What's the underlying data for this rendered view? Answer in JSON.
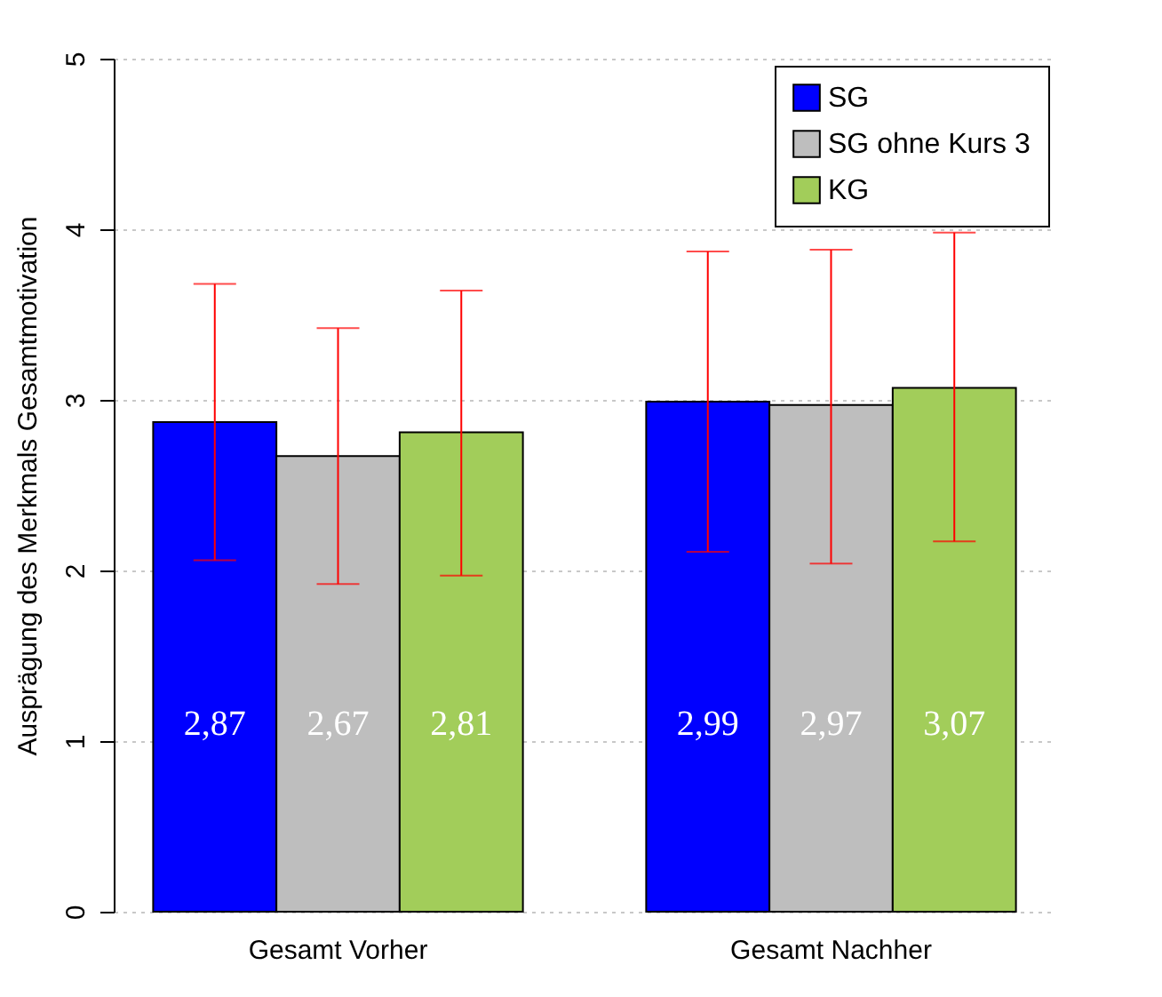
{
  "chart_data": {
    "type": "bar",
    "ylabel": "Ausprägung des Merkmals Gesamtmotivation",
    "categories": [
      "Gesamt Vorher",
      "Gesamt Nachher"
    ],
    "series": [
      {
        "name": "SG",
        "color": "#0000ff",
        "values": [
          2.87,
          2.99
        ],
        "errors": [
          [
            2.06,
            3.68
          ],
          [
            2.11,
            3.87
          ]
        ],
        "value_labels": [
          "2,87",
          "2,99"
        ]
      },
      {
        "name": "SG ohne Kurs 3",
        "color": "#bebebe",
        "values": [
          2.67,
          2.97
        ],
        "errors": [
          [
            1.92,
            3.42
          ],
          [
            2.04,
            3.88
          ]
        ],
        "value_labels": [
          "2,67",
          "2,97"
        ]
      },
      {
        "name": "KG",
        "color": "#a2cd5a",
        "values": [
          2.81,
          3.07
        ],
        "errors": [
          [
            1.97,
            3.64
          ],
          [
            2.17,
            3.98
          ]
        ],
        "value_labels": [
          "2,81",
          "3,07"
        ]
      }
    ],
    "ylim": [
      0,
      5
    ],
    "yticks": [
      0,
      1,
      2,
      3,
      4,
      5
    ],
    "grid": "y",
    "legend": "top right"
  }
}
